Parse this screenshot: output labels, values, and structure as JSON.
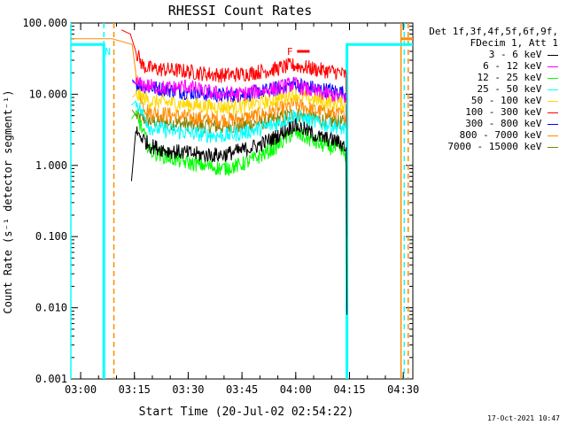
{
  "chart_data": {
    "type": "line",
    "title": "RHESSI Count Rates",
    "xlabel": "Start Time (20-Jul-02 02:54:22)",
    "ylabel": "Count Rate (s⁻¹ detector segment⁻¹)",
    "yscale": "log",
    "ylim": [
      0.001,
      100
    ],
    "xlim_minutes": [
      2.9,
      98.3
    ],
    "x_start": "02:54:22",
    "yticks": [
      "0.001",
      "0.010",
      "0.100",
      "1.000",
      "10.000",
      "100.000"
    ],
    "xticks": [
      {
        "label": "03:00",
        "m": 5.63
      },
      {
        "label": "03:15",
        "m": 20.63
      },
      {
        "label": "03:30",
        "m": 35.63
      },
      {
        "label": "03:45",
        "m": 50.63
      },
      {
        "label": "04:00",
        "m": 65.63
      },
      {
        "label": "04:15",
        "m": 80.63
      },
      {
        "label": "04:30",
        "m": 95.63
      }
    ],
    "legend_header": [
      "Det 1f,3f,4f,5f,6f,9f,",
      "FDecim 1, Att 1"
    ],
    "series": [
      {
        "name": "3 - 6 keV",
        "color": "#000000",
        "values": [
          [
            19.8,
            0.6
          ],
          [
            21,
            3.0
          ],
          [
            25,
            1.9
          ],
          [
            30,
            1.6
          ],
          [
            35,
            1.5
          ],
          [
            40,
            1.4
          ],
          [
            45,
            1.4
          ],
          [
            50,
            1.6
          ],
          [
            55,
            1.9
          ],
          [
            60,
            2.5
          ],
          [
            63,
            3.1
          ],
          [
            65,
            3.7
          ],
          [
            68,
            3.2
          ],
          [
            72,
            2.5
          ],
          [
            77,
            2.2
          ],
          [
            79.7,
            1.8
          ],
          [
            79.9,
            0.008
          ]
        ]
      },
      {
        "name": "6 - 12 keV",
        "color": "#ff00ff",
        "values": [
          [
            20,
            15
          ],
          [
            21,
            14
          ],
          [
            25,
            13
          ],
          [
            30,
            12
          ],
          [
            35,
            13
          ],
          [
            40,
            11
          ],
          [
            45,
            10
          ],
          [
            50,
            10
          ],
          [
            55,
            11
          ],
          [
            60,
            12
          ],
          [
            65,
            14
          ],
          [
            68,
            12
          ],
          [
            72,
            10.5
          ],
          [
            77,
            9.5
          ],
          [
            79.7,
            9
          ]
        ]
      },
      {
        "name": "12 - 25 keV",
        "color": "#00ff00",
        "values": [
          [
            19.8,
            4.5
          ],
          [
            21,
            5.5
          ],
          [
            25,
            1.6
          ],
          [
            30,
            1.3
          ],
          [
            35,
            1.1
          ],
          [
            40,
            1.0
          ],
          [
            45,
            0.9
          ],
          [
            50,
            1.0
          ],
          [
            55,
            1.3
          ],
          [
            60,
            1.8
          ],
          [
            63,
            2.4
          ],
          [
            65,
            2.9
          ],
          [
            68,
            2.5
          ],
          [
            72,
            2.0
          ],
          [
            77,
            1.7
          ],
          [
            79.7,
            1.4
          ],
          [
            79.9,
            0.01
          ]
        ]
      },
      {
        "name": "25 - 50 keV",
        "color": "#00ffff",
        "values": [
          [
            19.8,
            7
          ],
          [
            21,
            8
          ],
          [
            25,
            3.4
          ],
          [
            30,
            3.1
          ],
          [
            35,
            2.9
          ],
          [
            40,
            2.7
          ],
          [
            45,
            2.6
          ],
          [
            50,
            2.8
          ],
          [
            55,
            3.2
          ],
          [
            60,
            3.8
          ],
          [
            63,
            4.4
          ],
          [
            65,
            5.0
          ],
          [
            68,
            4.5
          ],
          [
            72,
            3.9
          ],
          [
            77,
            3.5
          ],
          [
            79.7,
            3.2
          ],
          [
            79.9,
            0.02
          ]
        ]
      },
      {
        "name": "50 - 100 keV",
        "color": "#ffd700",
        "values": [
          [
            20,
            9
          ],
          [
            21,
            10
          ],
          [
            25,
            8
          ],
          [
            30,
            7.6
          ],
          [
            35,
            7.2
          ],
          [
            40,
            6.8
          ],
          [
            45,
            6.6
          ],
          [
            50,
            6.8
          ],
          [
            55,
            7.4
          ],
          [
            60,
            8.4
          ],
          [
            63,
            9.4
          ],
          [
            65,
            10.2
          ],
          [
            68,
            9.2
          ],
          [
            72,
            8.2
          ],
          [
            77,
            7.6
          ],
          [
            79.7,
            7.2
          ]
        ]
      },
      {
        "name": "100 - 300 keV",
        "color": "#ff0000",
        "values": [
          [
            17,
            80
          ],
          [
            19.5,
            70
          ],
          [
            21,
            40
          ],
          [
            23,
            25
          ],
          [
            25,
            23
          ],
          [
            30,
            22
          ],
          [
            35,
            21
          ],
          [
            40,
            19.5
          ],
          [
            45,
            18.5
          ],
          [
            50,
            19
          ],
          [
            55,
            20.5
          ],
          [
            60,
            22.5
          ],
          [
            63,
            24.5
          ],
          [
            65,
            25.5
          ],
          [
            68,
            24
          ],
          [
            72,
            22
          ],
          [
            77,
            20.5
          ],
          [
            79.7,
            18.5
          ],
          [
            79.9,
            0.1
          ]
        ]
      },
      {
        "name": "300 - 800 keV",
        "color": "#0000ff",
        "values": [
          [
            20,
            16
          ],
          [
            21,
            14
          ],
          [
            25,
            12.5
          ],
          [
            30,
            11.5
          ],
          [
            35,
            10.8
          ],
          [
            40,
            10
          ],
          [
            45,
            9.6
          ],
          [
            50,
            9.8
          ],
          [
            55,
            10.6
          ],
          [
            60,
            11.8
          ],
          [
            63,
            13
          ],
          [
            65,
            14
          ],
          [
            68,
            13
          ],
          [
            72,
            11.8
          ],
          [
            77,
            11
          ],
          [
            79.7,
            10.2
          ]
        ]
      },
      {
        "name": "800 - 7000 keV",
        "color": "#ff8c00",
        "values": [
          [
            2.9,
            60
          ],
          [
            13.5,
            60
          ],
          [
            14.5,
            60
          ],
          [
            20,
            50
          ],
          [
            21,
            20
          ],
          [
            23,
            7
          ],
          [
            25,
            5.6
          ],
          [
            30,
            5.2
          ],
          [
            35,
            4.8
          ],
          [
            40,
            4.5
          ],
          [
            45,
            4.4
          ],
          [
            50,
            4.5
          ],
          [
            55,
            5.0
          ],
          [
            60,
            5.8
          ],
          [
            63,
            6.6
          ],
          [
            65,
            7.3
          ],
          [
            68,
            6.6
          ],
          [
            72,
            5.8
          ],
          [
            77,
            5.3
          ],
          [
            79.7,
            5.0
          ],
          [
            79.9,
            0.03
          ]
        ]
      },
      {
        "name": "7000 - 15000 keV",
        "color": "#808000",
        "values": [
          [
            20,
            6
          ],
          [
            21,
            5
          ],
          [
            25,
            4.2
          ],
          [
            30,
            4.0
          ],
          [
            35,
            3.8
          ],
          [
            40,
            3.6
          ],
          [
            45,
            3.5
          ],
          [
            50,
            3.6
          ],
          [
            55,
            3.9
          ],
          [
            60,
            4.4
          ],
          [
            63,
            4.9
          ],
          [
            65,
            5.3
          ],
          [
            68,
            4.9
          ],
          [
            72,
            4.4
          ],
          [
            77,
            4.1
          ],
          [
            79.7,
            3.9
          ]
        ]
      }
    ],
    "attenuator_series": [
      {
        "color": "#00ffff",
        "values": [
          [
            2.9,
            50
          ],
          [
            12.1,
            50
          ],
          [
            12.1,
            0.001
          ]
        ]
      },
      {
        "color": "#00ffff",
        "values": [
          [
            79.9,
            0.001
          ],
          [
            79.9,
            50
          ],
          [
            98.3,
            50
          ]
        ]
      },
      {
        "color": "#ff8c00",
        "values": [
          [
            95,
            60
          ],
          [
            98.3,
            60
          ]
        ]
      }
    ],
    "vlines": [
      {
        "m": 12.1,
        "color": "#00ffff",
        "dashed": true
      },
      {
        "m": 14.9,
        "color": "#ff8c00",
        "dashed": true
      },
      {
        "m": 95.0,
        "color": "#ff8c00",
        "dashed": false
      },
      {
        "m": 95.9,
        "color": "#00ffff",
        "dashed": true
      },
      {
        "m": 97.0,
        "color": "#ff8c00",
        "dashed": true
      },
      {
        "m": 2.9,
        "color": "#00ffff",
        "dashed": false
      }
    ],
    "annotations": [
      {
        "text": "N",
        "m": 13.2,
        "y": 40,
        "color": "#00ffff"
      },
      {
        "text": "F",
        "m": 64.0,
        "y": 40,
        "color": "#ff0000"
      }
    ],
    "flare_bar": {
      "m_start": 66.0,
      "m_end": 69.5,
      "y": 40,
      "color": "#ff0000"
    }
  },
  "footer": "17-Oct-2021 10:47"
}
